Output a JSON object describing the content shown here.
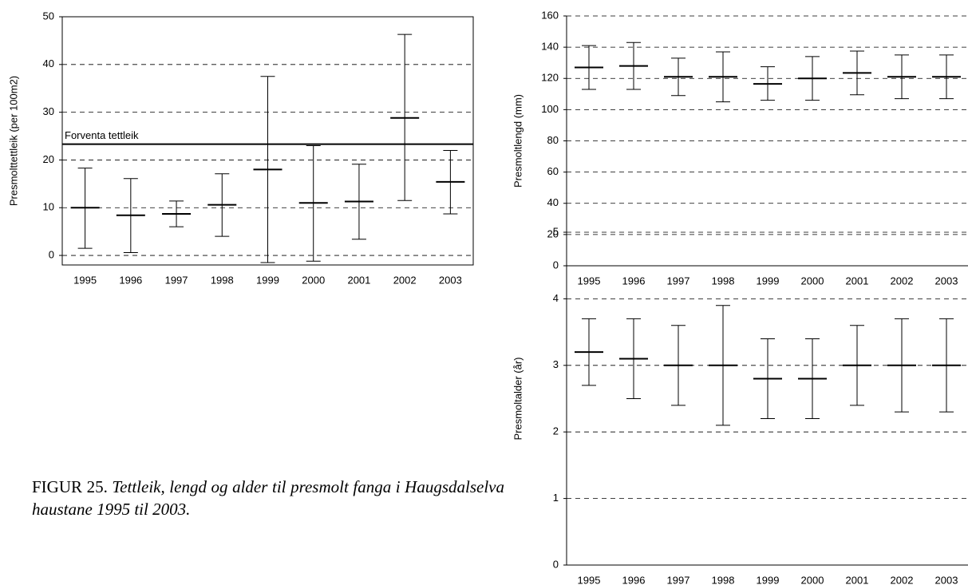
{
  "chart_data": [
    {
      "type": "errorbar",
      "y_label": "Presmolttettleik (per 100m2)",
      "categories": [
        "1995",
        "1996",
        "1997",
        "1998",
        "1999",
        "2000",
        "2001",
        "2002",
        "2003"
      ],
      "values": [
        10,
        8.4,
        8.7,
        10.6,
        18.0,
        11.0,
        11.3,
        28.8,
        15.4
      ],
      "low": [
        1.5,
        0.6,
        6.0,
        4.0,
        -1.5,
        -1.2,
        3.4,
        11.5,
        8.7
      ],
      "high": [
        18.3,
        16.1,
        11.4,
        17.1,
        37.5,
        23.0,
        19.1,
        46.3,
        22.0
      ],
      "ylim": [
        -2,
        50
      ],
      "yticks": [
        0,
        10,
        20,
        30,
        40,
        50
      ],
      "grid": true,
      "color": "#000000",
      "ref_line": {
        "value": 23.3,
        "label": "Forventa tettleik"
      }
    },
    {
      "type": "errorbar",
      "y_label": "Presmoltlengd (mm)",
      "categories": [
        "1995",
        "1996",
        "1997",
        "1998",
        "1999",
        "2000",
        "2001",
        "2002",
        "2003"
      ],
      "values": [
        127,
        128,
        121,
        121,
        116.5,
        120,
        123.5,
        121,
        121
      ],
      "low": [
        113,
        113,
        109,
        105,
        106,
        106,
        109.5,
        107,
        107
      ],
      "high": [
        141,
        143,
        133,
        137,
        127.5,
        134,
        137.5,
        135,
        135
      ],
      "ylim": [
        0,
        160
      ],
      "yticks": [
        0,
        20,
        40,
        60,
        80,
        100,
        120,
        140,
        160
      ],
      "grid": true,
      "color": "#000000"
    },
    {
      "type": "errorbar",
      "y_label": "Presmoltalder (år)",
      "categories": [
        "1995",
        "1996",
        "1997",
        "1998",
        "1999",
        "2000",
        "2001",
        "2002",
        "2003"
      ],
      "values": [
        3.2,
        3.1,
        3.0,
        3.0,
        2.8,
        2.8,
        3.0,
        3.0,
        3.0
      ],
      "low": [
        2.7,
        2.5,
        2.4,
        2.1,
        2.2,
        2.2,
        2.4,
        2.3,
        2.3
      ],
      "high": [
        3.7,
        3.7,
        3.6,
        3.9,
        3.4,
        3.4,
        3.6,
        3.7,
        3.7
      ],
      "ylim": [
        0,
        5
      ],
      "yticks": [
        0,
        1,
        2,
        3,
        4,
        5
      ],
      "grid": true,
      "color": "#000000"
    }
  ],
  "caption": {
    "label": "FIGUR 25.",
    "text": "Tettleik, lengd og alder til presmolt fanga i Haugsdalselva haustane 1995 til 2003."
  }
}
